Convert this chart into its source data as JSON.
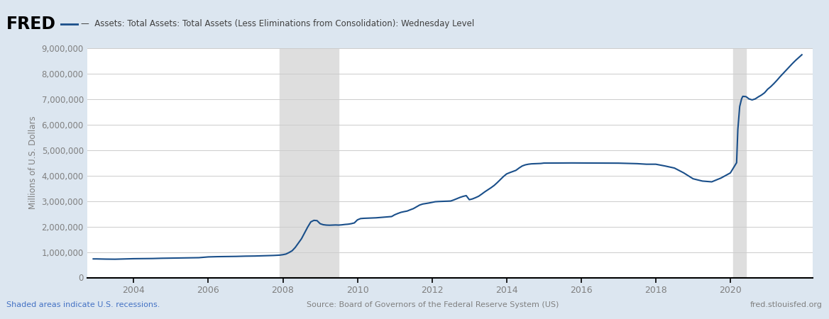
{
  "title": "Assets: Total Assets: Total Assets (Less Eliminations from Consolidation): Wednesday Level",
  "ylabel": "Millions of U.S. Dollars",
  "background_color": "#dce6f0",
  "plot_bg_color": "#ffffff",
  "line_color": "#1a4f8a",
  "line_width": 1.5,
  "ylim": [
    0,
    9000000
  ],
  "yticks": [
    0,
    1000000,
    2000000,
    3000000,
    4000000,
    5000000,
    6000000,
    7000000,
    8000000,
    9000000
  ],
  "xlim": [
    2002.75,
    2022.2
  ],
  "xtick_years": [
    2004,
    2006,
    2008,
    2010,
    2012,
    2014,
    2016,
    2018,
    2020
  ],
  "recession_shades": [
    {
      "start": 2007.917,
      "end": 2009.5
    },
    {
      "start": 2020.083,
      "end": 2020.417
    }
  ],
  "recession_color": "#dedede",
  "grid_color": "#cccccc",
  "footer_left": "Shaded areas indicate U.S. recessions.",
  "footer_center": "Source: Board of Governors of the Federal Reserve System (US)",
  "footer_right": "fred.stlouisfed.org",
  "footer_left_color": "#4472c4",
  "footer_other_color": "#808080",
  "fred_text": "FRED",
  "header_title_color": "#404040",
  "tick_color": "#808080",
  "data_points": [
    [
      2002.917,
      730000
    ],
    [
      2003.0,
      730000
    ],
    [
      2003.25,
      722000
    ],
    [
      2003.5,
      718000
    ],
    [
      2003.75,
      728000
    ],
    [
      2004.0,
      738000
    ],
    [
      2004.25,
      740000
    ],
    [
      2004.5,
      745000
    ],
    [
      2004.75,
      755000
    ],
    [
      2005.0,
      760000
    ],
    [
      2005.25,
      768000
    ],
    [
      2005.5,
      773000
    ],
    [
      2005.75,
      778000
    ],
    [
      2006.0,
      808000
    ],
    [
      2006.25,
      818000
    ],
    [
      2006.5,
      823000
    ],
    [
      2006.75,
      828000
    ],
    [
      2007.0,
      838000
    ],
    [
      2007.25,
      843000
    ],
    [
      2007.5,
      853000
    ],
    [
      2007.75,
      865000
    ],
    [
      2007.917,
      878000
    ],
    [
      2008.0,
      895000
    ],
    [
      2008.083,
      920000
    ],
    [
      2008.167,
      980000
    ],
    [
      2008.25,
      1050000
    ],
    [
      2008.333,
      1180000
    ],
    [
      2008.417,
      1350000
    ],
    [
      2008.5,
      1520000
    ],
    [
      2008.583,
      1750000
    ],
    [
      2008.667,
      1980000
    ],
    [
      2008.75,
      2180000
    ],
    [
      2008.833,
      2240000
    ],
    [
      2008.917,
      2230000
    ],
    [
      2009.0,
      2110000
    ],
    [
      2009.083,
      2070000
    ],
    [
      2009.167,
      2055000
    ],
    [
      2009.25,
      2050000
    ],
    [
      2009.333,
      2055000
    ],
    [
      2009.417,
      2060000
    ],
    [
      2009.5,
      2055000
    ],
    [
      2009.583,
      2065000
    ],
    [
      2009.667,
      2080000
    ],
    [
      2009.75,
      2090000
    ],
    [
      2009.833,
      2110000
    ],
    [
      2009.917,
      2140000
    ],
    [
      2010.0,
      2260000
    ],
    [
      2010.083,
      2310000
    ],
    [
      2010.167,
      2320000
    ],
    [
      2010.25,
      2325000
    ],
    [
      2010.333,
      2330000
    ],
    [
      2010.417,
      2335000
    ],
    [
      2010.5,
      2340000
    ],
    [
      2010.583,
      2350000
    ],
    [
      2010.667,
      2360000
    ],
    [
      2010.75,
      2370000
    ],
    [
      2010.833,
      2380000
    ],
    [
      2010.917,
      2390000
    ],
    [
      2011.0,
      2460000
    ],
    [
      2011.083,
      2510000
    ],
    [
      2011.167,
      2555000
    ],
    [
      2011.25,
      2582000
    ],
    [
      2011.333,
      2605000
    ],
    [
      2011.417,
      2655000
    ],
    [
      2011.5,
      2700000
    ],
    [
      2011.583,
      2770000
    ],
    [
      2011.667,
      2840000
    ],
    [
      2011.75,
      2880000
    ],
    [
      2011.833,
      2900000
    ],
    [
      2011.917,
      2920000
    ],
    [
      2012.0,
      2945000
    ],
    [
      2012.083,
      2970000
    ],
    [
      2012.167,
      2978000
    ],
    [
      2012.25,
      2982000
    ],
    [
      2012.333,
      2988000
    ],
    [
      2012.417,
      2992000
    ],
    [
      2012.5,
      2998000
    ],
    [
      2012.583,
      3040000
    ],
    [
      2012.667,
      3090000
    ],
    [
      2012.75,
      3140000
    ],
    [
      2012.833,
      3180000
    ],
    [
      2012.917,
      3210000
    ],
    [
      2013.0,
      3050000
    ],
    [
      2013.083,
      3080000
    ],
    [
      2013.167,
      3130000
    ],
    [
      2013.25,
      3185000
    ],
    [
      2013.333,
      3270000
    ],
    [
      2013.417,
      3360000
    ],
    [
      2013.5,
      3440000
    ],
    [
      2013.583,
      3520000
    ],
    [
      2013.667,
      3610000
    ],
    [
      2013.75,
      3720000
    ],
    [
      2013.833,
      3840000
    ],
    [
      2013.917,
      3960000
    ],
    [
      2014.0,
      4060000
    ],
    [
      2014.083,
      4110000
    ],
    [
      2014.167,
      4155000
    ],
    [
      2014.25,
      4200000
    ],
    [
      2014.333,
      4290000
    ],
    [
      2014.417,
      4370000
    ],
    [
      2014.5,
      4415000
    ],
    [
      2014.583,
      4440000
    ],
    [
      2014.667,
      4455000
    ],
    [
      2014.75,
      4460000
    ],
    [
      2014.833,
      4465000
    ],
    [
      2014.917,
      4470000
    ],
    [
      2015.0,
      4485000
    ],
    [
      2015.25,
      4488000
    ],
    [
      2015.5,
      4488000
    ],
    [
      2015.75,
      4490000
    ],
    [
      2016.0,
      4488000
    ],
    [
      2016.25,
      4487000
    ],
    [
      2016.5,
      4486000
    ],
    [
      2016.75,
      4485000
    ],
    [
      2017.0,
      4482000
    ],
    [
      2017.25,
      4472000
    ],
    [
      2017.5,
      4462000
    ],
    [
      2017.75,
      4440000
    ],
    [
      2018.0,
      4440000
    ],
    [
      2018.25,
      4370000
    ],
    [
      2018.5,
      4290000
    ],
    [
      2018.75,
      4100000
    ],
    [
      2019.0,
      3870000
    ],
    [
      2019.25,
      3780000
    ],
    [
      2019.5,
      3750000
    ],
    [
      2019.75,
      3900000
    ],
    [
      2020.0,
      4100000
    ],
    [
      2020.083,
      4300000
    ],
    [
      2020.167,
      4500000
    ],
    [
      2020.2,
      5800000
    ],
    [
      2020.25,
      6700000
    ],
    [
      2020.3,
      7000000
    ],
    [
      2020.333,
      7100000
    ],
    [
      2020.417,
      7090000
    ],
    [
      2020.5,
      7000000
    ],
    [
      2020.583,
      6960000
    ],
    [
      2020.667,
      7000000
    ],
    [
      2020.75,
      7080000
    ],
    [
      2020.833,
      7150000
    ],
    [
      2020.917,
      7240000
    ],
    [
      2021.0,
      7380000
    ],
    [
      2021.083,
      7480000
    ],
    [
      2021.167,
      7600000
    ],
    [
      2021.25,
      7730000
    ],
    [
      2021.333,
      7870000
    ],
    [
      2021.417,
      8000000
    ],
    [
      2021.5,
      8130000
    ],
    [
      2021.583,
      8260000
    ],
    [
      2021.667,
      8390000
    ],
    [
      2021.75,
      8510000
    ],
    [
      2021.833,
      8620000
    ],
    [
      2021.917,
      8730000
    ]
  ]
}
